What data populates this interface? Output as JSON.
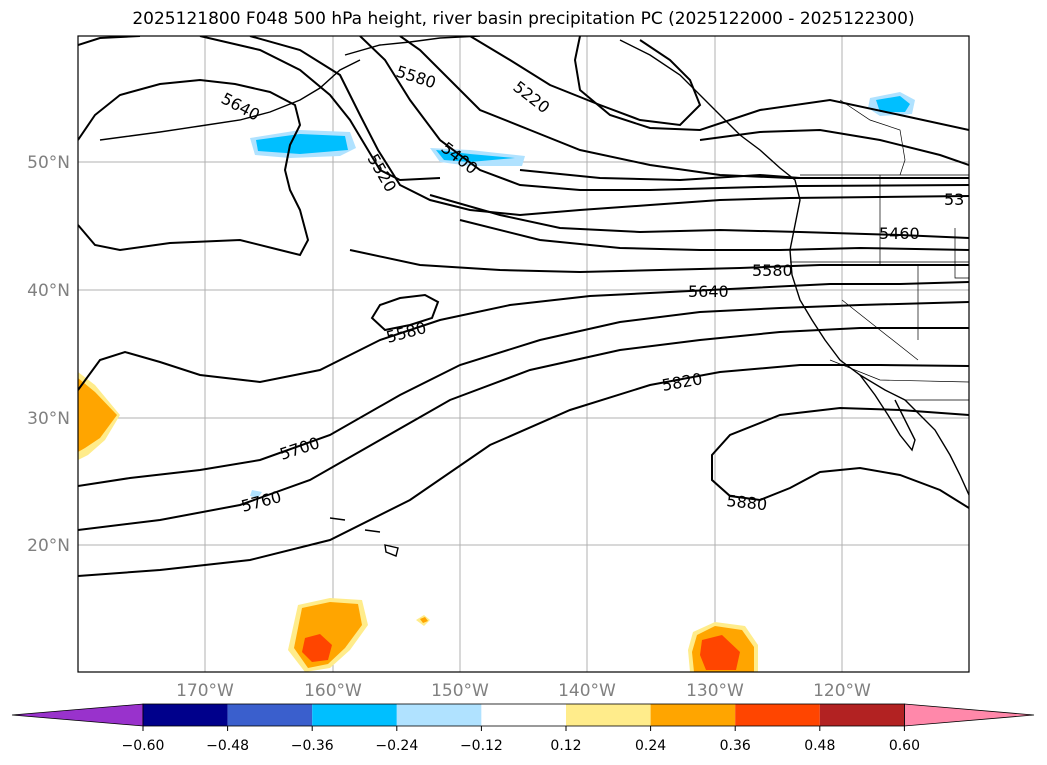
{
  "title": "2025121800 F048 500 hPa height, river basin precipitation PC (2025122000 - 2025122300)",
  "map": {
    "lat_labels": [
      "50°N",
      "40°N",
      "30°N",
      "20°N"
    ],
    "lon_labels": [
      "170°W",
      "160°W",
      "150°W",
      "140°W",
      "130°W",
      "120°W"
    ],
    "contour_labels": [
      "5640",
      "5580",
      "5220",
      "5400",
      "5520",
      "53",
      "5460",
      "5580",
      "5640",
      "5580",
      "5820",
      "5700",
      "5760",
      "5880"
    ]
  },
  "colorbar": {
    "ticks": [
      "−0.60",
      "−0.48",
      "−0.36",
      "−0.24",
      "−0.12",
      "0.12",
      "0.24",
      "0.36",
      "0.48",
      "0.60"
    ],
    "colors": [
      "#9932cc",
      "#00008b",
      "#3a5fcd",
      "#00bfff",
      "#b0e2ff",
      "#ffffff",
      "#ffec8b",
      "#ffa500",
      "#ff4500",
      "#b22222",
      "#ff88aa"
    ]
  }
}
